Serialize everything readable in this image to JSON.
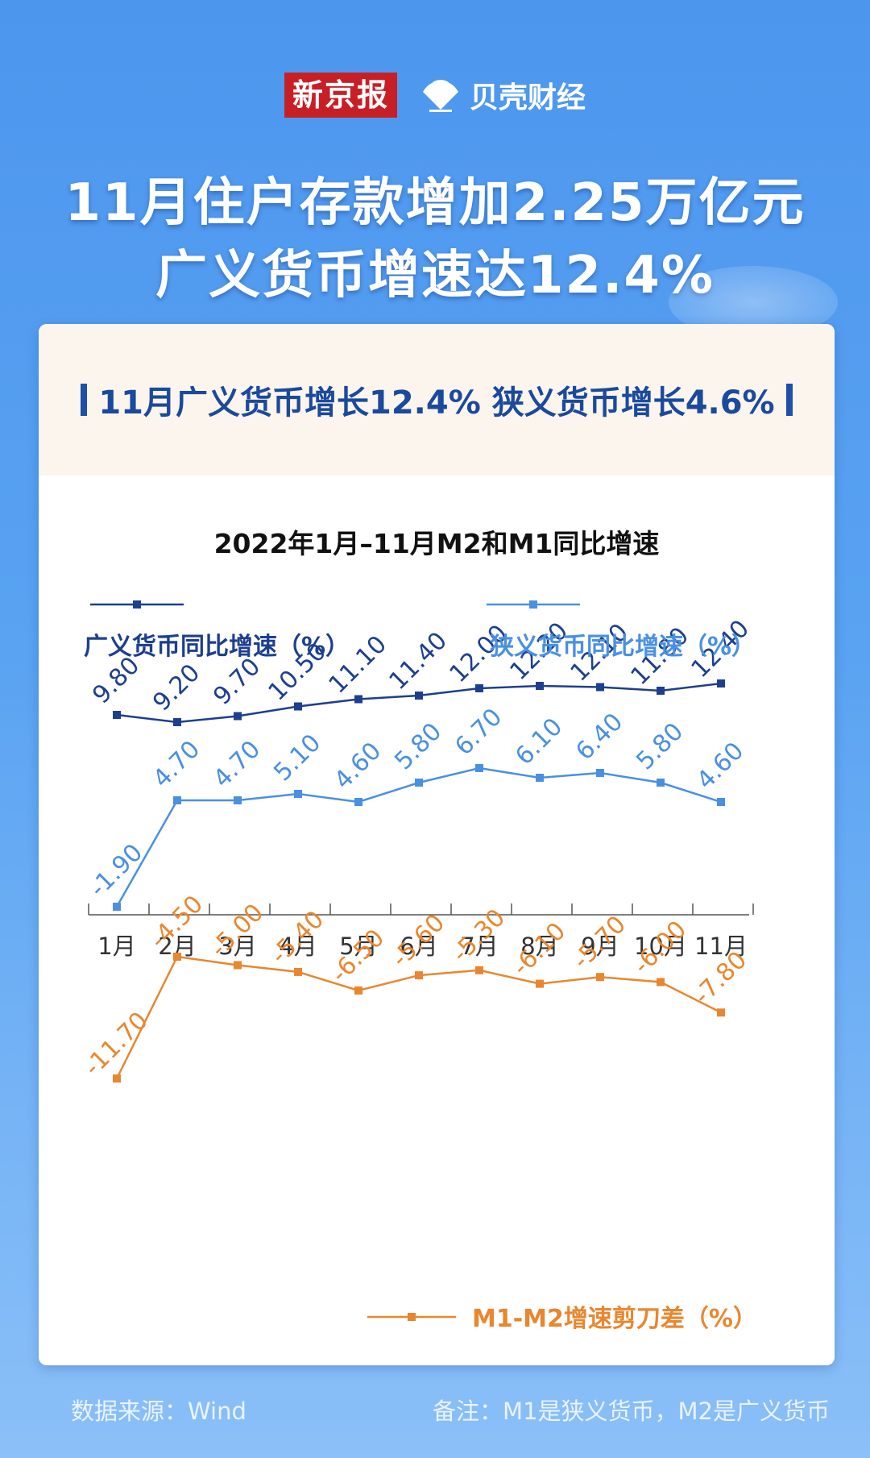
{
  "header": {
    "brand_left": "新京报",
    "brand_right": "贝壳财经",
    "title_line1": "11月住户存款增加2.25万亿元",
    "title_line2": "广义货币增速达12.4%"
  },
  "card": {
    "subheading": "11月广义货币增长12.4% 狭义货币增长4.6%"
  },
  "footer": {
    "source": "数据来源：Wind",
    "note": "备注：M1是狭义货币，M2是广义货币"
  },
  "colors": {
    "m2": "#1d3f8f",
    "m1": "#4a90e2",
    "diff": "#e8872f"
  },
  "chart_data": {
    "type": "line",
    "title": "2022年1月–11月M2和M1同比增速",
    "categories": [
      "1月",
      "2月",
      "3月",
      "4月",
      "5月",
      "6月",
      "7月",
      "8月",
      "9月",
      "10月",
      "11月"
    ],
    "series": [
      {
        "name": "广义货币同比增速（%）",
        "values": [
          9.8,
          9.2,
          9.7,
          10.5,
          11.1,
          11.4,
          12.0,
          12.2,
          12.1,
          11.8,
          12.4
        ],
        "labels": [
          "9.80",
          "9.20",
          "9.70",
          "10.50",
          "11.10",
          "11.40",
          "12.00",
          "12.20",
          "12.10",
          "11.80",
          "12.40"
        ]
      },
      {
        "name": "狭义货币同比增速（%）",
        "values": [
          -1.9,
          4.7,
          4.7,
          5.1,
          4.6,
          5.8,
          6.7,
          6.1,
          6.4,
          5.8,
          4.6
        ],
        "labels": [
          "-1.90",
          "4.70",
          "4.70",
          "5.10",
          "4.60",
          "5.80",
          "6.70",
          "6.10",
          "6.40",
          "5.80",
          "4.60"
        ]
      },
      {
        "name": "M1-M2增速剪刀差（%）",
        "values": [
          -11.7,
          -4.5,
          -5.0,
          -5.4,
          -6.5,
          -5.6,
          -5.3,
          -6.1,
          -5.7,
          -6.0,
          -7.8
        ],
        "labels": [
          "-11.70",
          "-4.50",
          "-5.00",
          "-5.40",
          "-6.50",
          "-5.60",
          "-5.30",
          "-6.10",
          "-5.70",
          "-6.00",
          "-7.80"
        ]
      }
    ]
  }
}
